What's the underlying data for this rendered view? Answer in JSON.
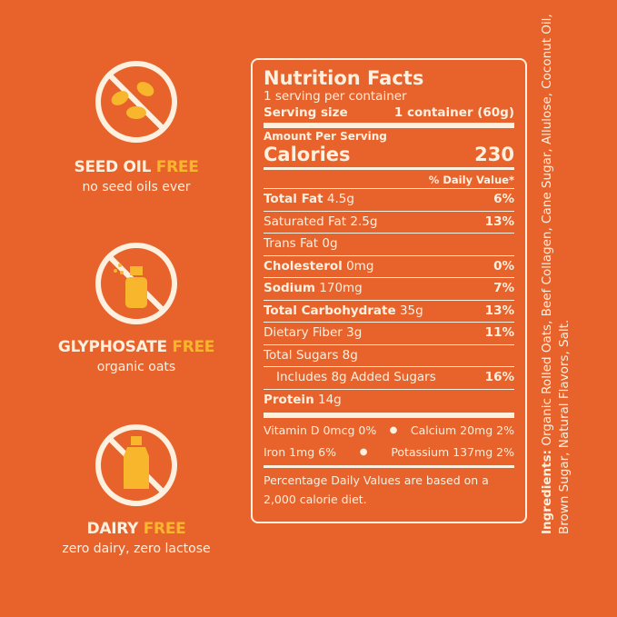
{
  "features": [
    {
      "title_main": "SEED OIL",
      "title_accent": "FREE",
      "subtitle": "no seed oils ever"
    },
    {
      "title_main": "GLYPHOSATE",
      "title_accent": "FREE",
      "subtitle": "organic oats"
    },
    {
      "title_main": "DAIRY",
      "title_accent": "FREE",
      "subtitle": "zero dairy, zero lactose"
    }
  ],
  "nutrition": {
    "title": "Nutrition Facts",
    "servings": "1 serving per container",
    "serving_size_label": "Serving size",
    "serving_size_value": "1 container (60g)",
    "amount_per_serving": "Amount Per Serving",
    "calories_label": "Calories",
    "calories_value": "230",
    "dv_header": "% Daily Value*",
    "rows": [
      {
        "label": "Total Fat",
        "amount": "4.5g",
        "dv": "6%",
        "bold": true,
        "indent": false
      },
      {
        "label": "Saturated Fat",
        "amount": "2.5g",
        "dv": "13%",
        "bold": false,
        "indent": false
      },
      {
        "label": "Trans Fat",
        "amount": "0g",
        "dv": null,
        "bold": false,
        "indent": false
      },
      {
        "label": "Cholesterol",
        "amount": "0mg",
        "dv": "0%",
        "bold": true,
        "indent": false
      },
      {
        "label": "Sodium",
        "amount": "170mg",
        "dv": "7%",
        "bold": true,
        "indent": false
      },
      {
        "label": "Total Carbohydrate",
        "amount": "35g",
        "dv": "13%",
        "bold": true,
        "indent": false
      },
      {
        "label": "Dietary Fiber",
        "amount": "3g",
        "dv": "11%",
        "bold": false,
        "indent": false
      },
      {
        "label": "Total Sugars",
        "amount": "8g",
        "dv": null,
        "bold": false,
        "indent": false
      },
      {
        "label": "Includes 8g Added Sugars",
        "amount": null,
        "dv": "16%",
        "bold": false,
        "indent": true
      },
      {
        "label": "Protein",
        "amount": "14g",
        "dv": null,
        "bold": true,
        "indent": false
      }
    ],
    "vitamins": [
      [
        "Vitamin D 0mcg 0%",
        "Calcium 20mg 2%"
      ],
      [
        "Iron 1mg 6%",
        "Potassium 137mg 2%"
      ]
    ],
    "footnote": "Percentage Daily Values are based on a 2,000 calorie diet."
  },
  "ingredients": {
    "label": "Ingredients:",
    "text": "Organic Rolled Oats, Beef Collagen, Cane Sugar, Allulose, Coconut Oil, Brown Sugar, Natural Flavors, Salt."
  }
}
